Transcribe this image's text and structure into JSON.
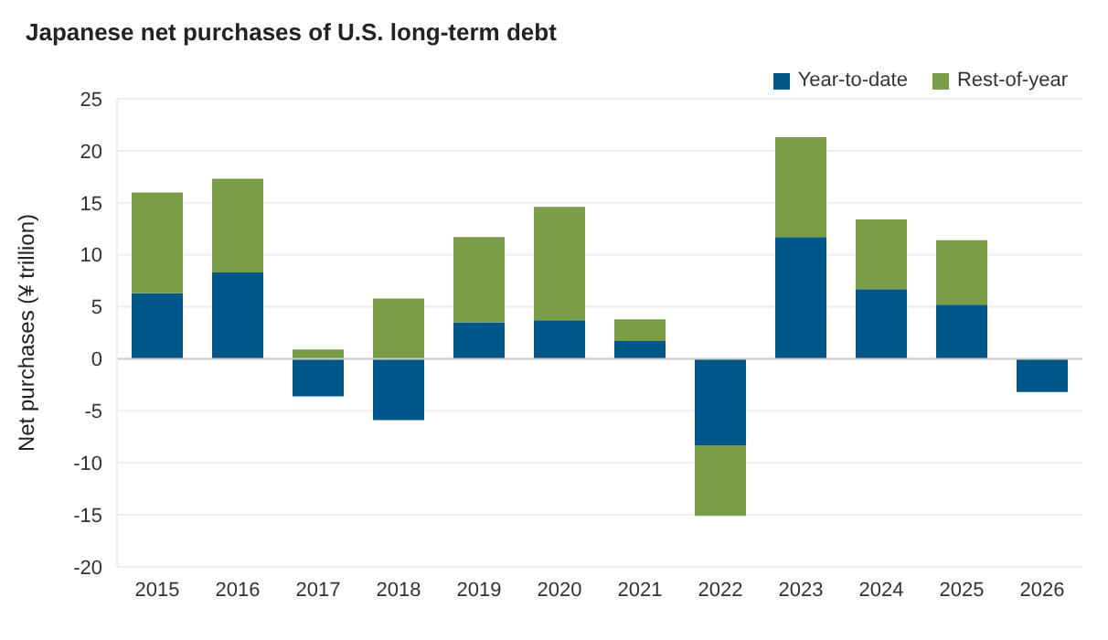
{
  "chart_data": {
    "type": "bar",
    "title": "Japanese net purchases of U.S. long-term debt",
    "ylabel": "Net purchases (¥ trillion)",
    "categories": [
      "2015",
      "2016",
      "2017",
      "2018",
      "2019",
      "2020",
      "2021",
      "2022",
      "2023",
      "2024",
      "2025",
      "2026"
    ],
    "series": [
      {
        "name": "Year-to-date",
        "color": "#00578a",
        "values": [
          6.3,
          8.3,
          -3.6,
          -5.9,
          3.5,
          3.7,
          1.7,
          -8.3,
          11.7,
          6.7,
          5.2,
          -3.2
        ]
      },
      {
        "name": "Rest-of-year",
        "color": "#7a9e48",
        "values": [
          9.7,
          9.0,
          0.9,
          5.8,
          8.2,
          10.9,
          2.1,
          -6.8,
          9.6,
          6.7,
          6.2,
          null
        ]
      }
    ],
    "stacked": true,
    "ylim": [
      -20,
      25
    ],
    "yticks": [
      -20,
      -15,
      -10,
      -5,
      0,
      5,
      10,
      15,
      20,
      25
    ],
    "grid": "y",
    "legend": "top right"
  }
}
